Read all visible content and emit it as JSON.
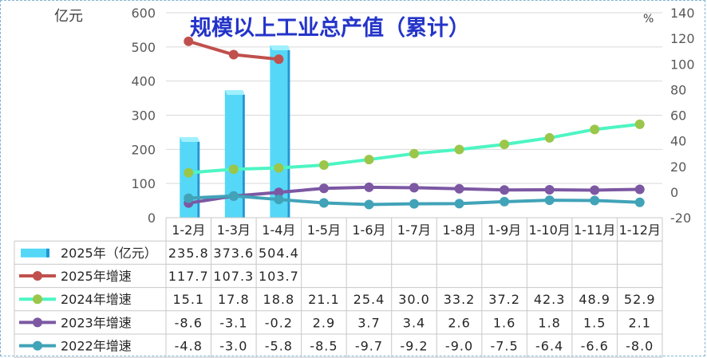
{
  "chart_data": {
    "type": "bar+line",
    "title": "规模以上工业总产值（累计）",
    "left_axis_unit": "亿元",
    "right_axis_unit": "%",
    "left_ylim": [
      0,
      600
    ],
    "left_ticks": [
      0,
      100,
      200,
      300,
      400,
      500,
      600
    ],
    "right_ylim": [
      -20,
      140
    ],
    "right_ticks": [
      -20,
      0,
      20,
      40,
      60,
      80,
      100,
      120,
      140
    ],
    "categories": [
      "1-2月",
      "1-3月",
      "1-4月",
      "1-5月",
      "1-6月",
      "1-7月",
      "1-8月",
      "1-9月",
      "1-10月",
      "1-11月",
      "1-12月"
    ],
    "series": [
      {
        "name": "2025年（亿元）",
        "kind": "bar",
        "axis": "left",
        "color": "#55d8f7",
        "values": [
          235.8,
          373.6,
          504.4,
          null,
          null,
          null,
          null,
          null,
          null,
          null,
          null
        ]
      },
      {
        "name": "2025年增速",
        "kind": "line",
        "axis": "right",
        "color": "#c0504d",
        "marker": "#c0504d",
        "values": [
          117.7,
          107.3,
          103.7,
          null,
          null,
          null,
          null,
          null,
          null,
          null,
          null
        ]
      },
      {
        "name": "2024年增速",
        "kind": "line",
        "axis": "right",
        "color": "#4df5c3",
        "marker": "#9bc64a",
        "values": [
          15.1,
          17.8,
          18.8,
          21.1,
          25.4,
          30.0,
          33.2,
          37.2,
          42.3,
          48.9,
          52.9
        ]
      },
      {
        "name": "2023年增速",
        "kind": "line",
        "axis": "right",
        "color": "#7c58a3",
        "marker": "#7c58a3",
        "values": [
          -8.6,
          -3.1,
          -0.2,
          2.9,
          3.7,
          3.4,
          2.6,
          1.6,
          1.8,
          1.5,
          2.1
        ]
      },
      {
        "name": "2022年增速",
        "kind": "line",
        "axis": "right",
        "color": "#41a3b8",
        "marker": "#41a3b8",
        "values": [
          -4.8,
          -3.0,
          -5.8,
          -8.5,
          -9.7,
          -9.2,
          -9.0,
          -7.5,
          -6.4,
          -6.6,
          -8.0
        ]
      }
    ],
    "table": [
      [
        "235.8",
        "373.6",
        "504.4",
        "",
        "",
        "",
        "",
        "",
        "",
        "",
        ""
      ],
      [
        "117.7",
        "107.3",
        "103.7",
        "",
        "",
        "",
        "",
        "",
        "",
        "",
        ""
      ],
      [
        "15.1",
        "17.8",
        "18.8",
        "21.1",
        "25.4",
        "30.0",
        "33.2",
        "37.2",
        "42.3",
        "48.9",
        "52.9"
      ],
      [
        "-8.6",
        "-3.1",
        "-0.2",
        "2.9",
        "3.7",
        "3.4",
        "2.6",
        "1.6",
        "1.8",
        "1.5",
        "2.1"
      ],
      [
        "-4.8",
        "-3.0",
        "-5.8",
        "-8.5",
        "-9.7",
        "-9.2",
        "-9.0",
        "-7.5",
        "-6.4",
        "-6.6",
        "-8.0"
      ]
    ]
  }
}
